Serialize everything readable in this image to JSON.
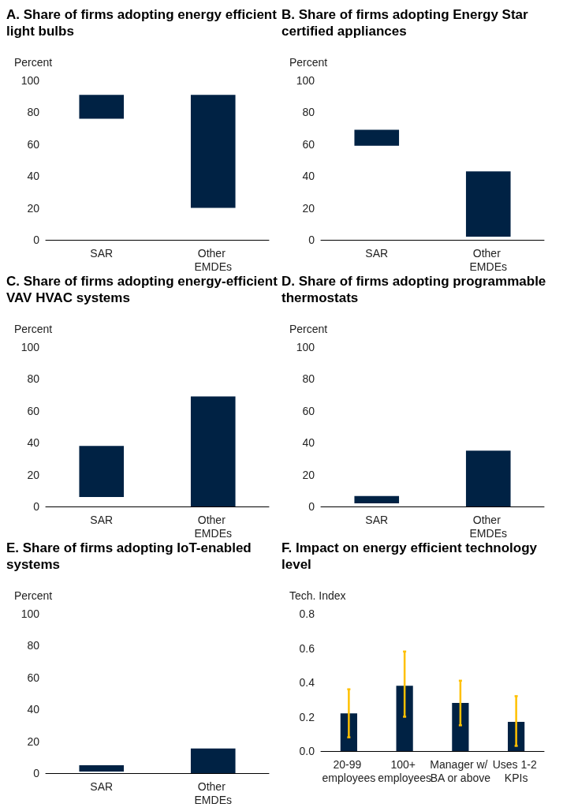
{
  "chart_data": [
    {
      "type": "bar",
      "title": "A. Share of firms adopting energy efficient light bulbs",
      "ylabel": "Percent",
      "categories": [
        "SAR",
        "Other EMDEs"
      ],
      "base": [
        76,
        20
      ],
      "values": [
        15,
        71
      ],
      "color": "#002244",
      "ylim": [
        0,
        100
      ],
      "yticks": [
        0,
        20,
        40,
        60,
        80,
        100
      ],
      "grid": false
    },
    {
      "type": "bar",
      "title": "B. Share of firms adopting Energy Star certified appliances",
      "ylabel": "Percent",
      "categories": [
        "SAR",
        "Other EMDEs"
      ],
      "base": [
        59,
        2
      ],
      "values": [
        10,
        41
      ],
      "color": "#002244",
      "ylim": [
        0,
        100
      ],
      "yticks": [
        0,
        20,
        40,
        60,
        80,
        100
      ],
      "grid": false
    },
    {
      "type": "bar",
      "title": "C. Share of firms adopting energy-efficient VAV HVAC systems",
      "ylabel": "Percent",
      "categories": [
        "SAR",
        "Other EMDEs"
      ],
      "base": [
        6,
        0
      ],
      "values": [
        32,
        69
      ],
      "color": "#002244",
      "ylim": [
        0,
        100
      ],
      "yticks": [
        0,
        20,
        40,
        60,
        80,
        100
      ],
      "grid": false
    },
    {
      "type": "bar",
      "title": "D. Share of firms adopting programmable thermostats",
      "ylabel": "Percent",
      "categories": [
        "SAR",
        "Other EMDEs"
      ],
      "base": [
        2,
        0
      ],
      "values": [
        4.5,
        35
      ],
      "color": "#002244",
      "ylim": [
        0,
        100
      ],
      "yticks": [
        0,
        20,
        40,
        60,
        80,
        100
      ],
      "grid": false
    },
    {
      "type": "bar",
      "title": "E. Share of firms adopting IoT-enabled systems",
      "ylabel": "Percent",
      "categories": [
        "SAR",
        "Other EMDEs"
      ],
      "base": [
        1,
        0
      ],
      "values": [
        4,
        15.5
      ],
      "color": "#002244",
      "ylim": [
        0,
        100
      ],
      "yticks": [
        0,
        20,
        40,
        60,
        80,
        100
      ],
      "grid": false
    },
    {
      "type": "bar",
      "title": "F. Impact on energy efficient technology level",
      "ylabel": "Tech. Index",
      "categories": [
        "20-99 employees",
        "100+ employees",
        "Manager w/ BA or above",
        "Uses 1-2 KPIs"
      ],
      "values": [
        0.22,
        0.38,
        0.28,
        0.17
      ],
      "errors": [
        [
          0.08,
          0.36
        ],
        [
          0.2,
          0.58
        ],
        [
          0.15,
          0.41
        ],
        [
          0.03,
          0.32
        ]
      ],
      "color": "#002244",
      "ylim": [
        0,
        0.8
      ],
      "yticks": [
        {
          "value": 0,
          "label": "0.0"
        },
        0.2,
        0.4,
        0.6,
        0.8
      ],
      "grid": false
    }
  ]
}
